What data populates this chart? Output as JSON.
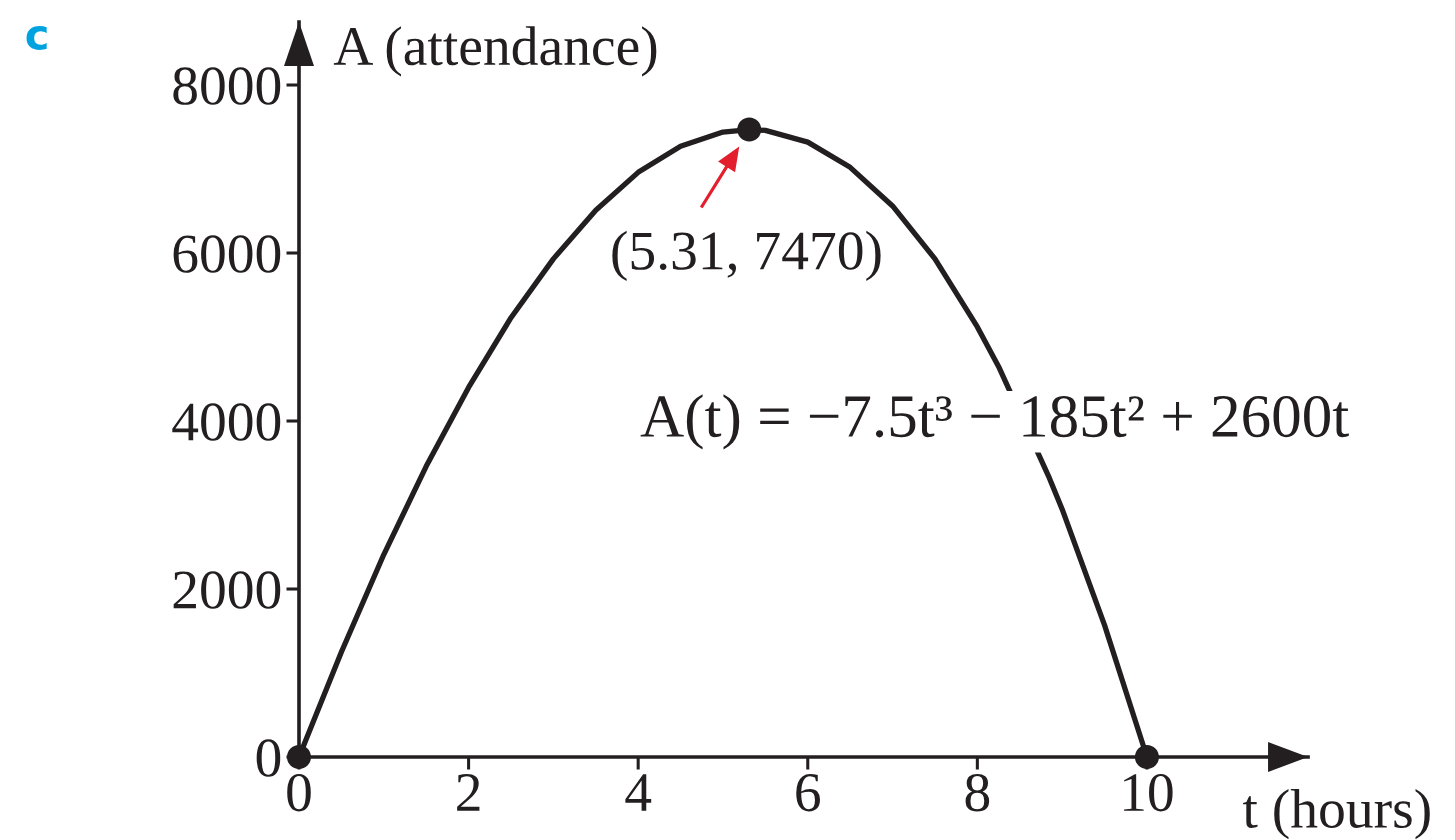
{
  "chart_data": {
    "type": "line",
    "xlabel": "t (hours)",
    "ylabel": "A (attendance)",
    "xlim": [
      0,
      11.9
    ],
    "ylim": [
      0,
      8750
    ],
    "xticks": [
      0,
      2,
      4,
      6,
      8,
      10
    ],
    "yticks": [
      0,
      2000,
      4000,
      6000,
      8000
    ],
    "series": [
      {
        "name": "A(t) = −7.5t³ − 185t² + 2600t",
        "color": "#231f20",
        "line_style": "solid",
        "marker": "none",
        "x": [
          0,
          0.5,
          1,
          1.5,
          2,
          2.5,
          3,
          3.5,
          4,
          4.5,
          5,
          5.31,
          5.5,
          6,
          6.5,
          7,
          7.5,
          8,
          8.25,
          8.85,
          9,
          9.5,
          10
        ],
        "values": [
          0,
          1250,
          2410,
          3460,
          4400,
          5230,
          5930,
          6510,
          6960,
          7270,
          7440,
          7470,
          7460,
          7320,
          7020,
          6560,
          5930,
          5120,
          4650,
          3320,
          2950,
          1570,
          0
        ]
      },
      {
        "type": "scatter",
        "color": "#231f20",
        "marker": "circle",
        "x": [
          0,
          5.31,
          10
        ],
        "values": [
          0,
          7470,
          0
        ]
      }
    ],
    "annotations": [
      "c",
      {
        "text": "(5.31, 7470)",
        "x": 5.31,
        "y": 7470
      }
    ]
  }
}
